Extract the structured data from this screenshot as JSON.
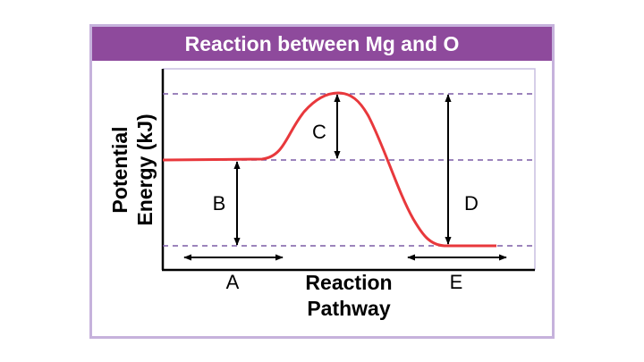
{
  "title": "Reaction between Mg and O",
  "y_axis_title": [
    "Potential",
    "Energy (kJ)"
  ],
  "x_axis_title": [
    "Reaction",
    "Pathway"
  ],
  "segment_labels": {
    "a": "A",
    "b": "B",
    "c": "C",
    "d": "D",
    "e": "E"
  },
  "colors": {
    "curve": "#e8383c",
    "title_bar": "#8e4a9c",
    "frame_border": "#c6b2dc",
    "dashed_reference": "#7c5ba6",
    "axis": "#000000"
  }
}
